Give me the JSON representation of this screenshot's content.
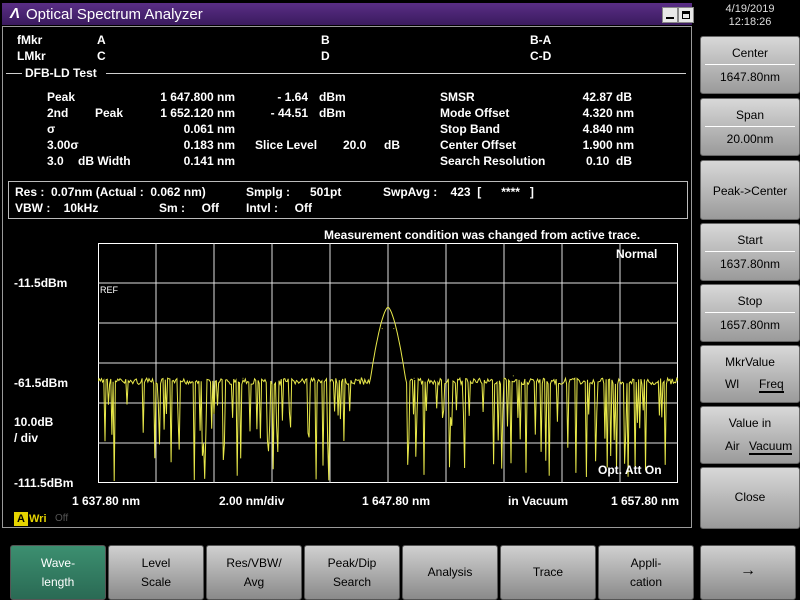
{
  "window": {
    "title": "Optical Spectrum Analyzer",
    "logo": "Λ"
  },
  "markers": {
    "fMkr": "fMkr",
    "LMkr": "LMkr",
    "A": "A",
    "B": "B",
    "BA": "B-A",
    "C": "C",
    "D": "D",
    "CD": "C-D"
  },
  "section_title": "DFB-LD Test",
  "results_left": {
    "peak_label": "Peak",
    "peak_wl": "1 647.800 nm",
    "peak_lvl": "- 1.64",
    "peak_unit": "dBm",
    "second_a": "2nd",
    "second_b": "Peak",
    "second_wl": "1 652.120 nm",
    "second_lvl": "- 44.51",
    "second_unit": "dBm",
    "sigma_label": "σ",
    "sigma_val": "0.061 nm",
    "sigma3_label": "3.00σ",
    "sigma3_val": "0.183 nm",
    "slice_label": "Slice Level",
    "slice_val": "20.0",
    "slice_unit": "dB",
    "width_a": "3.0",
    "width_b": "dB Width",
    "width_val": "0.141 nm"
  },
  "results_right": {
    "smsr_label": "SMSR",
    "smsr_val": "42.87 dB",
    "mode_label": "Mode Offset",
    "mode_val": "4.320 nm",
    "stop_label": "Stop Band",
    "stop_val": "4.840 nm",
    "center_label": "Center Offset",
    "center_val": "1.900 nm",
    "res_label": "Search Resolution",
    "res_val": "0.10  dB"
  },
  "info": {
    "res": "Res :  0.07nm (Actual :  0.062 nm)",
    "smplg": "Smplg :      501pt",
    "swpavg": "SwpAvg :    423  [      ****   ]",
    "vbw": "VBW :    10kHz",
    "sm": "Sm :     Off",
    "intvl": "Intvl :     Off"
  },
  "plot": {
    "notice": "Measurement condition was changed from active trace.",
    "mode": "Normal",
    "y_top": "-11.5dBm",
    "y_mid": "-61.5dBm",
    "y_scale_a": "10.0dB",
    "y_scale_b": "/ div",
    "y_bottom": "-111.5dBm",
    "ref": "REF",
    "att": "Opt. Att On",
    "x_start": "1 637.80 nm",
    "x_div": "2.00 nm/div",
    "x_center": "1 647.80 nm",
    "x_medium": "in Vacuum",
    "x_stop": "1 657.80 nm",
    "trace_color": "#e8e84a",
    "grid_color": "#e0e0e0"
  },
  "wri": {
    "a": "A",
    "label": "Wri",
    "off": "Off"
  },
  "clock": {
    "date": "4/19/2019",
    "time": "12:18:26"
  },
  "softkeys": {
    "center_label": "Center",
    "center_val": "1647.80nm",
    "span_label": "Span",
    "span_val": "20.00nm",
    "peak_center": "Peak->Center",
    "start_label": "Start",
    "start_val": "1637.80nm",
    "stop_label": "Stop",
    "stop_val": "1657.80nm",
    "mkr_label": "MkrValue",
    "mkr_wl": "Wl",
    "mkr_freq": "Freq",
    "value_label": "Value in",
    "value_air": "Air",
    "value_vac": "Vacuum",
    "close": "Close"
  },
  "function_keys": {
    "wave_a": "Wave-",
    "wave_b": "length",
    "level_a": "Level",
    "level_b": "Scale",
    "res_a": "Res/VBW/",
    "res_b": "Avg",
    "peak_a": "Peak/Dip",
    "peak_b": "Search",
    "analysis": "Analysis",
    "trace": "Trace",
    "app_a": "Appli-",
    "app_b": "cation",
    "next": "→"
  },
  "chart_data": {
    "type": "line",
    "x_unit": "nm",
    "xlim": [
      1637.8,
      1657.8
    ],
    "ylim": [
      -111.5,
      38.5
    ],
    "y_unit": "dBm",
    "series": [
      {
        "x": [
          1637.8,
          1642.8,
          1646.9,
          1647.3,
          1647.6,
          1647.8,
          1648.0,
          1648.3,
          1648.7,
          1652.12,
          1657.8
        ],
        "y": [
          -46,
          -46,
          -46,
          -34,
          -15,
          -1.64,
          -15,
          -34,
          -46,
          -44.51,
          -46
        ]
      }
    ],
    "grid": true
  }
}
